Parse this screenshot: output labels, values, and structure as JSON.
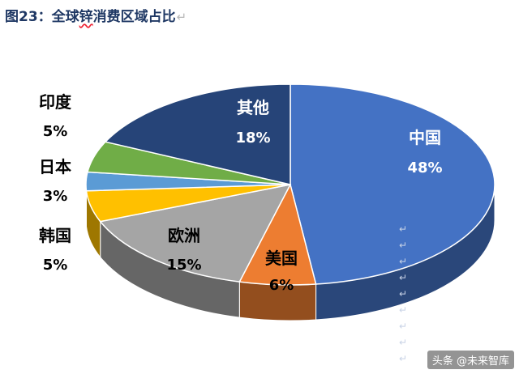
{
  "title": {
    "prefix": "图23：全球",
    "wavy": "锌",
    "rest": "消费区域占比",
    "return_mark": "↵"
  },
  "return_marks": [
    "↵",
    "↵",
    "↵",
    "↵",
    "↵",
    "↵",
    "↵",
    "↵",
    "↵"
  ],
  "watermark": {
    "text": "头条 @未来智库"
  },
  "chart_data": {
    "type": "pie",
    "style": "3d",
    "title": "图23：全球锌消费区域占比",
    "slices": [
      {
        "label": "中国",
        "value": 48,
        "value_label": "48%",
        "color": "#4472c4",
        "label_color": "#ffffff",
        "label_position": "inside"
      },
      {
        "label": "美国",
        "value": 6,
        "value_label": "6%",
        "color": "#ed7d31",
        "label_color": "#000000",
        "label_position": "inside"
      },
      {
        "label": "欧洲",
        "value": 15,
        "value_label": "15%",
        "color": "#a5a5a5",
        "label_color": "#000000",
        "label_position": "inside"
      },
      {
        "label": "韩国",
        "value": 5,
        "value_label": "5%",
        "color": "#ffc000",
        "label_color": "#000000",
        "label_position": "outside"
      },
      {
        "label": "日本",
        "value": 3,
        "value_label": "3%",
        "color": "#5b9bd5",
        "label_color": "#000000",
        "label_position": "outside"
      },
      {
        "label": "印度",
        "value": 5,
        "value_label": "5%",
        "color": "#70ad47",
        "label_color": "#000000",
        "label_position": "outside"
      },
      {
        "label": "其他",
        "value": 18,
        "value_label": "18%",
        "color": "#264478",
        "label_color": "#ffffff",
        "label_position": "inside"
      }
    ],
    "legend": "none"
  }
}
